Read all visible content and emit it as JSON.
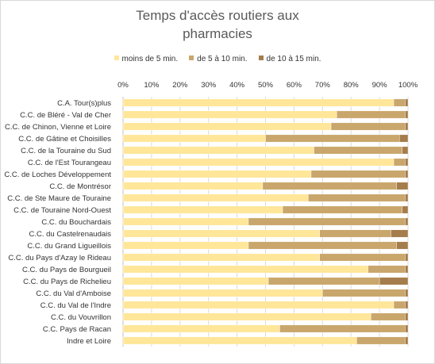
{
  "chart_data": {
    "type": "bar",
    "orientation": "horizontal",
    "stacked": true,
    "percent": true,
    "title": "Temps d'accès routiers aux pharmacies",
    "legend_position": "top",
    "grid": true,
    "xlim": [
      0,
      100
    ],
    "x_ticks": [
      "0%",
      "10%",
      "20%",
      "30%",
      "40%",
      "50%",
      "60%",
      "70%",
      "80%",
      "90%",
      "100%"
    ],
    "categories": [
      "C.A. Tour(s)plus",
      "C.C. de Bléré - Val de Cher",
      "C.C. de Chinon, Vienne et Loire",
      "C.C. de Gâtine et Choisilles",
      "C.C. de la Touraine du Sud",
      "C.C. de l'Est Tourangeau",
      "C.C. de Loches Développement",
      "C.C. de Montrésor",
      "C.C. de Ste Maure de Touraine",
      "C.C. de Touraine Nord-Ouest",
      "C.C. du Bouchardais",
      "C.C. du Castelrenaudais",
      "C.C. du Grand Ligueillois",
      "C.C. du Pays d'Azay le Rideau",
      "C.C. du Pays de Bourgueil",
      "C.C. du Pays de Richelieu",
      "C.C. du Val d'Amboise",
      "C.C. du Val de l'Indre",
      "C.C. du Vouvrillon",
      "C.C. Pays de Racan",
      "Indre et Loire"
    ],
    "series": [
      {
        "name": "moins de 5 min.",
        "color": "#ffe699",
        "values": [
          95,
          75,
          73,
          50,
          67,
          95,
          66,
          49,
          65,
          56,
          44,
          69,
          44,
          69,
          86,
          51,
          70,
          95,
          87,
          55,
          82
        ]
      },
      {
        "name": "de 5 à 10 min.",
        "color": "#c9a66b",
        "values": [
          4,
          24,
          26,
          47,
          31,
          4,
          33,
          47,
          34,
          42,
          55,
          25,
          52,
          30,
          13,
          39,
          29,
          4,
          12,
          44,
          17
        ]
      },
      {
        "name": "de 10 à 15 min.",
        "color": "#a57c4b",
        "values": [
          1,
          1,
          1,
          3,
          2,
          1,
          1,
          4,
          1,
          2,
          1,
          6,
          4,
          1,
          1,
          10,
          1,
          1,
          1,
          1,
          1
        ]
      }
    ]
  }
}
